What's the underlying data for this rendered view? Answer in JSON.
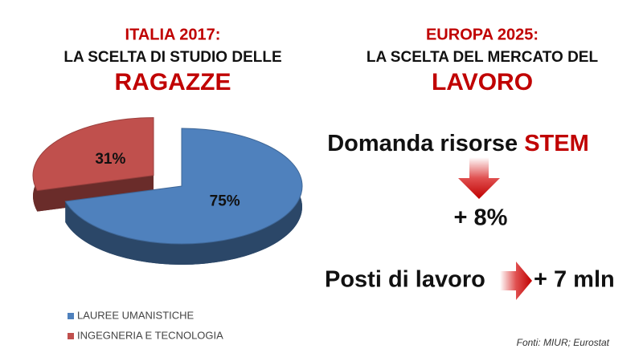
{
  "left_heading": {
    "line1": "ITALIA 2017:",
    "line2": "LA SCELTA DI STUDIO DELLE",
    "line3": "RAGAZZE"
  },
  "chart_data": {
    "type": "pie",
    "categories": [
      "LAUREE UMANISTICHE",
      "INGEGNERIA E TECNOLOGIA"
    ],
    "values": [
      75,
      31
    ],
    "value_labels": [
      "75%",
      "31%"
    ],
    "colors": [
      "#4f81bd",
      "#c0504d"
    ]
  },
  "right_heading": {
    "line1": "EUROPA 2025:",
    "line2": "LA SCELTA DEL MERCATO DEL",
    "line3": "LAVORO"
  },
  "stem": {
    "label": "Domanda risorse",
    "highlight": "STEM",
    "change": "+ 8%"
  },
  "jobs": {
    "label": "Posti di lavoro",
    "change": "+ 7 mln"
  },
  "source": "Fonti: MIUR; Eurostat"
}
